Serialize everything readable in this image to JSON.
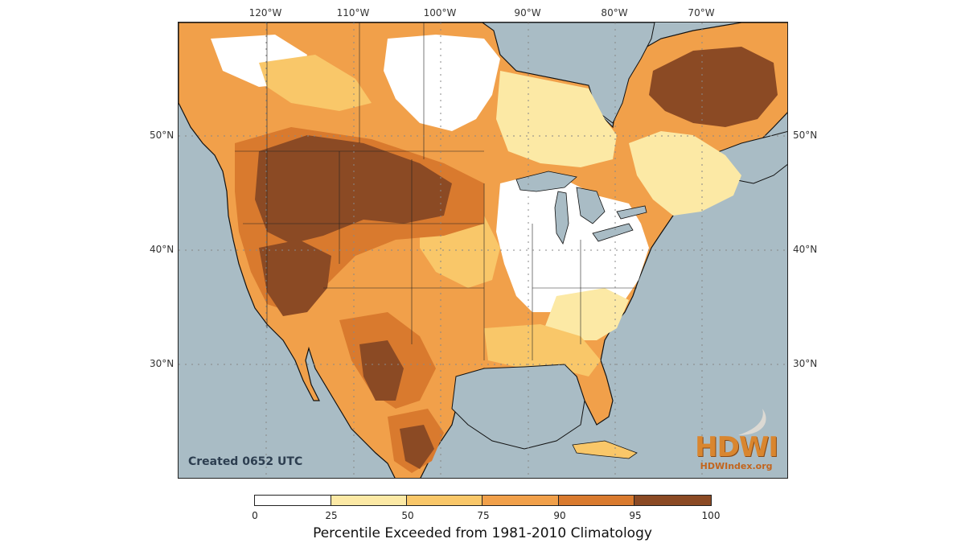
{
  "map": {
    "lon_labels": [
      "120°W",
      "110°W",
      "100°W",
      "90°W",
      "80°W",
      "70°W"
    ],
    "lat_labels": [
      "50°N",
      "40°N",
      "30°N"
    ],
    "created_label": "Created 0652 UTC",
    "logo_text": "HDWI",
    "logo_url": "HDWIndex.org",
    "colors": {
      "ocean": "#a9bcc5",
      "c0_25": "#ffffff",
      "c25_50": "#fce9a5",
      "c50_75": "#f9c769",
      "c75_90": "#f1a04a",
      "c90_95": "#d97a2e",
      "c95_100": "#8b4a24"
    }
  },
  "colorbar": {
    "ticks": [
      "0",
      "25",
      "50",
      "75",
      "90",
      "95",
      "100"
    ],
    "title": "Percentile Exceeded from 1981-2010 Climatology"
  }
}
